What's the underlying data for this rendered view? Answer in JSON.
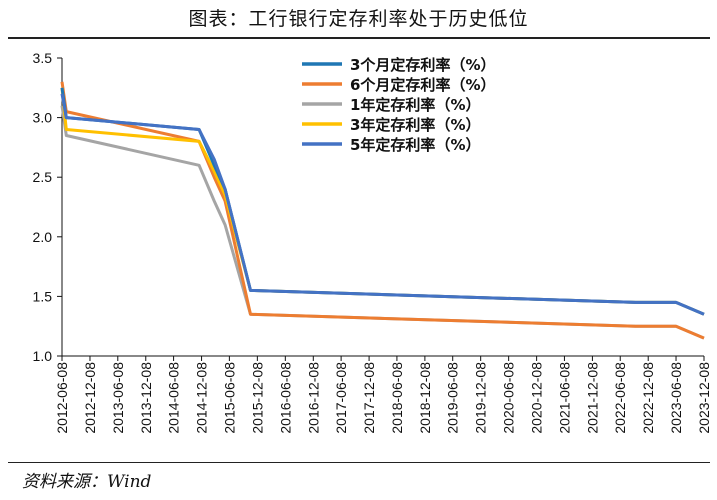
{
  "title": "图表：工行银行定存利率处于历史低位",
  "source": "资料来源：Wind",
  "chart_data": {
    "type": "line",
    "ylim": [
      1.0,
      3.5
    ],
    "y_ticks": [
      "1.0",
      "1.5",
      "2.0",
      "2.5",
      "3.0",
      "3.5"
    ],
    "x_ticks": [
      "2012-06-08",
      "2012-12-08",
      "2013-06-08",
      "2013-12-08",
      "2014-06-08",
      "2014-12-08",
      "2015-06-08",
      "2015-12-08",
      "2016-06-08",
      "2016-12-08",
      "2017-06-08",
      "2017-12-08",
      "2018-06-08",
      "2018-12-08",
      "2019-06-08",
      "2019-12-08",
      "2020-06-08",
      "2020-12-08",
      "2021-06-08",
      "2021-12-08",
      "2022-06-08",
      "2022-12-08",
      "2023-06-08",
      "2023-12-08"
    ],
    "legend_position": "top-right",
    "grid": false,
    "series": [
      {
        "name": "3个月定存利率（%）",
        "color": "#1f77b4",
        "points": [
          [
            "2012-06-08",
            3.25
          ],
          [
            "2012-07-06",
            3.0
          ],
          [
            "2014-11-22",
            2.9
          ],
          [
            "2015-03-01",
            2.6
          ],
          [
            "2015-05-11",
            2.4
          ],
          [
            "2015-10-24",
            1.55
          ],
          [
            "2022-09-15",
            1.45
          ],
          [
            "2023-06-08",
            1.45
          ],
          [
            "2023-12-08",
            1.35
          ]
        ]
      },
      {
        "name": "6个月定存利率（%）",
        "color": "#ed7d31",
        "points": [
          [
            "2012-06-08",
            3.3
          ],
          [
            "2012-07-06",
            3.05
          ],
          [
            "2014-11-22",
            2.8
          ],
          [
            "2015-03-01",
            2.5
          ],
          [
            "2015-05-11",
            2.3
          ],
          [
            "2015-10-24",
            1.35
          ],
          [
            "2022-09-15",
            1.25
          ],
          [
            "2023-06-08",
            1.25
          ],
          [
            "2023-12-08",
            1.15
          ]
        ]
      },
      {
        "name": "1年定存利率（%）",
        "color": "#a5a5a5",
        "points": [
          [
            "2012-06-08",
            3.1
          ],
          [
            "2012-07-06",
            2.85
          ],
          [
            "2014-11-22",
            2.6
          ],
          [
            "2015-03-01",
            2.3
          ],
          [
            "2015-05-11",
            2.1
          ],
          [
            "2015-10-24",
            1.35
          ],
          [
            "2022-09-15",
            1.25
          ],
          [
            "2023-06-08",
            1.25
          ],
          [
            "2023-12-08",
            1.15
          ]
        ]
      },
      {
        "name": "3年定存利率（%）",
        "color": "#ffc000",
        "points": [
          [
            "2012-06-08",
            3.25
          ],
          [
            "2012-07-06",
            2.9
          ],
          [
            "2014-11-22",
            2.8
          ],
          [
            "2015-03-01",
            2.55
          ],
          [
            "2015-05-11",
            2.35
          ],
          [
            "2015-10-24",
            1.55
          ],
          [
            "2022-09-15",
            1.45
          ],
          [
            "2023-06-08",
            1.45
          ],
          [
            "2023-12-08",
            1.35
          ]
        ]
      },
      {
        "name": "5年定存利率（%）",
        "color": "#4472c4",
        "points": [
          [
            "2012-06-08",
            3.2
          ],
          [
            "2012-07-06",
            3.0
          ],
          [
            "2014-11-22",
            2.9
          ],
          [
            "2015-03-01",
            2.65
          ],
          [
            "2015-05-11",
            2.4
          ],
          [
            "2015-10-24",
            1.55
          ],
          [
            "2022-09-15",
            1.45
          ],
          [
            "2023-06-08",
            1.45
          ],
          [
            "2023-12-08",
            1.35
          ]
        ]
      }
    ]
  }
}
